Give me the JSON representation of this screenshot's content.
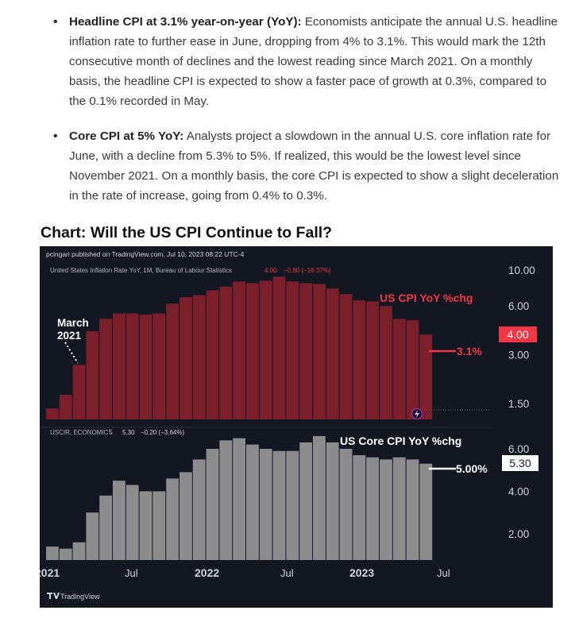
{
  "bullets": [
    {
      "bold": "Headline CPI at 3.1% year-on-year (YoY):",
      "text": " Economists anticipate the annual U.S. headline inflation rate to further ease in June, dropping from 4% to 3.1%. This would mark the 12th consecutive month of declines and the lowest reading since March 2021. On a monthly basis, the headline CPI is expected to show a faster pace of growth at 0.3%, compared to the 0.1% recorded in May."
    },
    {
      "bold": "Core CPI at 5% YoY:",
      "text": " Analysts project a slowdown in the annual U.S. core inflation rate for June, with a decline from 5.3% to 5%. If realized, this would be the lowest level since November 2021. On a monthly basis, the core CPI is expected to show a slight deceleration in the rate of increase, going from 0.4% to 0.3%."
    }
  ],
  "chart_heading": "Chart: Will the US CPI Continue to Fall?",
  "chart_header": {
    "published": "pcingari published on TradingView.com, Jul 10, 2023 08:22 UTC-4",
    "top_legend_name": "United States Inflation Rate YoY, 1M, Bureau of Labour Statistics",
    "top_legend_value": "4.00",
    "top_legend_change": "−0.90 (−18.37%)",
    "bottom_legend_name": "USCIR, ECONOMICS",
    "bottom_legend_value": "5.30",
    "bottom_legend_change": "−0.20 (−3.64%)",
    "branding": "TradingView"
  },
  "chart_data": [
    {
      "type": "bar",
      "title": "US CPI YoY %chg",
      "x": [
        "2021-01",
        "2021-02",
        "2021-03",
        "2021-04",
        "2021-05",
        "2021-06",
        "2021-07",
        "2021-08",
        "2021-09",
        "2021-10",
        "2021-11",
        "2021-12",
        "2022-01",
        "2022-02",
        "2022-03",
        "2022-04",
        "2022-05",
        "2022-06",
        "2022-07",
        "2022-08",
        "2022-09",
        "2022-10",
        "2022-11",
        "2022-12",
        "2023-01",
        "2023-02",
        "2023-03",
        "2023-04",
        "2023-05"
      ],
      "values": [
        1.4,
        1.7,
        2.6,
        4.2,
        5.0,
        5.4,
        5.4,
        5.3,
        5.4,
        6.2,
        6.8,
        7.0,
        7.5,
        7.9,
        8.5,
        8.3,
        8.6,
        9.1,
        8.5,
        8.3,
        8.2,
        7.7,
        7.1,
        6.5,
        6.4,
        6.0,
        5.0,
        4.9,
        4.0
      ],
      "y_ticks": [
        "10.00",
        "6.00",
        "3.00",
        "1.50"
      ],
      "last_value_label": "4.00",
      "annotation_start": "March 2021",
      "annotation_forecast": "3.1%",
      "color": "#7b1f2b",
      "label_color": "#f23645",
      "scale": "log"
    },
    {
      "type": "bar",
      "title": "US Core CPI YoY %chg",
      "x": [
        "2021-01",
        "2021-02",
        "2021-03",
        "2021-04",
        "2021-05",
        "2021-06",
        "2021-07",
        "2021-08",
        "2021-09",
        "2021-10",
        "2021-11",
        "2021-12",
        "2022-01",
        "2022-02",
        "2022-03",
        "2022-04",
        "2022-05",
        "2022-06",
        "2022-07",
        "2022-08",
        "2022-09",
        "2022-10",
        "2022-11",
        "2022-12",
        "2023-01",
        "2023-02",
        "2023-03",
        "2023-04",
        "2023-05"
      ],
      "values": [
        1.4,
        1.3,
        1.6,
        3.0,
        3.8,
        4.5,
        4.3,
        4.0,
        4.0,
        4.6,
        4.9,
        5.5,
        6.0,
        6.4,
        6.5,
        6.2,
        6.0,
        5.9,
        5.9,
        6.3,
        6.6,
        6.3,
        6.0,
        5.7,
        5.6,
        5.5,
        5.6,
        5.5,
        5.3
      ],
      "y_ticks": [
        "6.00",
        "4.00",
        "2.00"
      ],
      "last_value_label": "5.30",
      "annotation_forecast": "5.00%",
      "color": "#8c8c8c",
      "label_color": "#ffffff"
    }
  ],
  "x_axis_labels": [
    "2021",
    "Jul",
    "2022",
    "Jul",
    "2023",
    "Jul"
  ]
}
